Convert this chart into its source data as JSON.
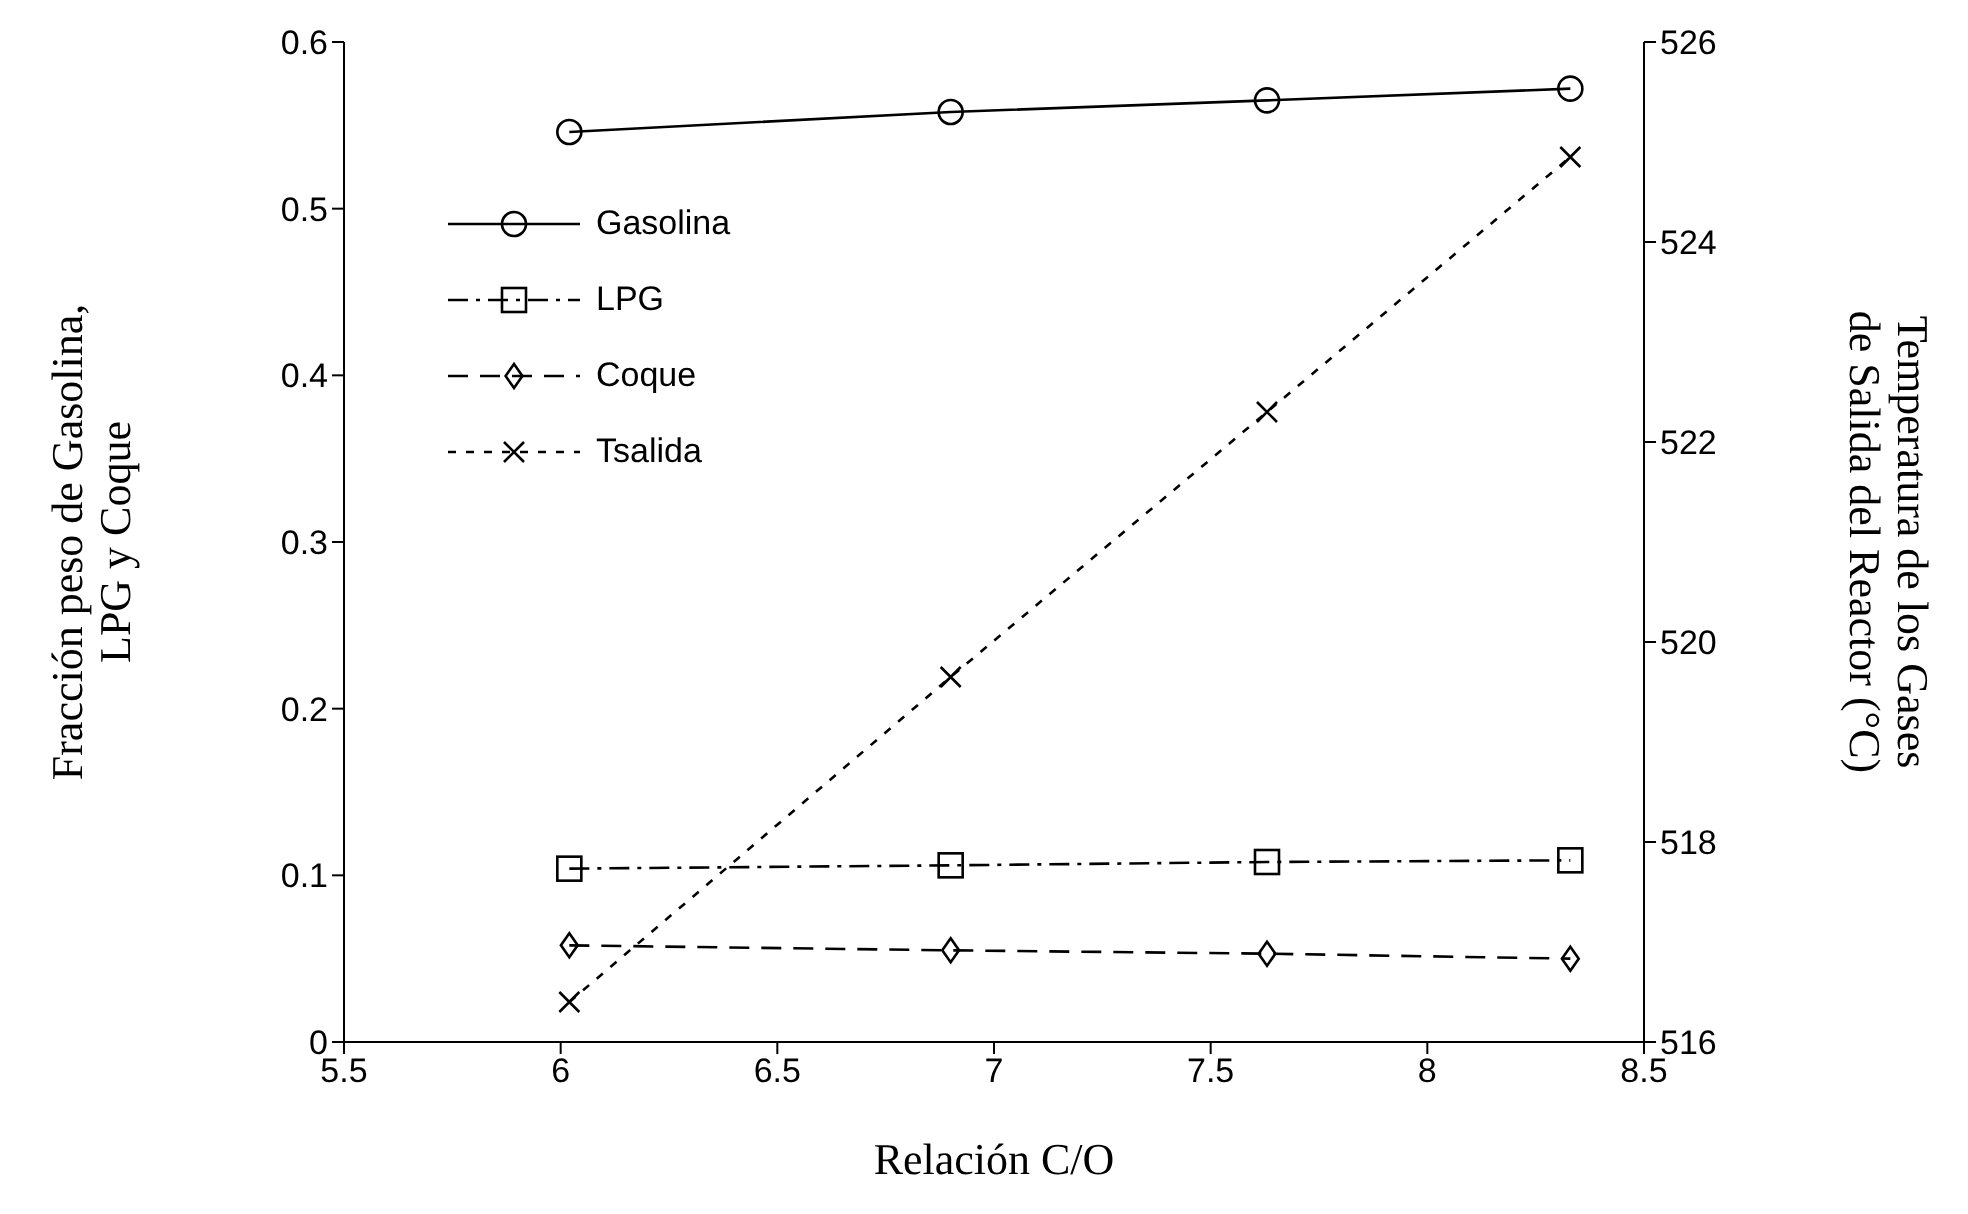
{
  "chart_data": {
    "type": "line",
    "xlabel": "Relación C/O",
    "ylabel": "Fracción peso de Gasolina,\nLPG y Coque",
    "y2label": "Temperatura de los Gases\nde Salida del Reactor (°C)",
    "x": [
      6.02,
      6.9,
      7.63,
      8.33
    ],
    "xlim": [
      5.5,
      8.5
    ],
    "xticks": [
      5.5,
      6,
      6.5,
      7,
      7.5,
      8,
      8.5
    ],
    "ylim": [
      0,
      0.6
    ],
    "yticks": [
      0,
      0.1,
      0.2,
      0.3,
      0.4,
      0.5,
      0.6
    ],
    "y2lim": [
      516,
      526
    ],
    "y2ticks": [
      516,
      518,
      520,
      522,
      524,
      526
    ],
    "legend": "top left",
    "series": [
      {
        "name": "Gasolina",
        "color": "#000000",
        "marker": "circle",
        "line_style": "solid",
        "values": [
          0.546,
          0.558,
          0.565,
          0.572
        ]
      },
      {
        "name": "LPG",
        "color": "#000000",
        "marker": "square",
        "line_style": "dashdot",
        "values": [
          0.104,
          0.106,
          0.108,
          0.109
        ]
      },
      {
        "name": "Coque",
        "color": "#000000",
        "marker": "diamond",
        "line_style": "dashed",
        "values": [
          0.058,
          0.055,
          0.053,
          0.05
        ]
      },
      {
        "name": "Tsalida",
        "color": "#000000",
        "marker": "cross",
        "line_style": "dotted",
        "axis": "y2",
        "values": [
          516.4,
          519.65,
          522.3,
          524.85
        ]
      }
    ]
  }
}
